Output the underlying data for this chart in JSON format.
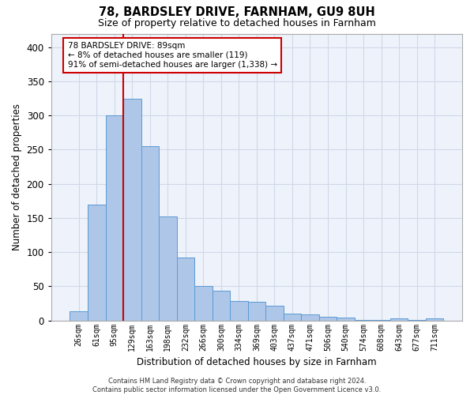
{
  "title1": "78, BARDSLEY DRIVE, FARNHAM, GU9 8UH",
  "title2": "Size of property relative to detached houses in Farnham",
  "xlabel": "Distribution of detached houses by size in Farnham",
  "ylabel": "Number of detached properties",
  "categories": [
    "26sqm",
    "61sqm",
    "95sqm",
    "129sqm",
    "163sqm",
    "198sqm",
    "232sqm",
    "266sqm",
    "300sqm",
    "334sqm",
    "369sqm",
    "403sqm",
    "437sqm",
    "471sqm",
    "506sqm",
    "540sqm",
    "574sqm",
    "608sqm",
    "643sqm",
    "677sqm",
    "711sqm"
  ],
  "values": [
    13,
    170,
    300,
    325,
    255,
    152,
    92,
    50,
    43,
    28,
    27,
    21,
    10,
    9,
    5,
    4,
    1,
    1,
    3,
    1,
    3
  ],
  "bar_color": "#aec6e8",
  "bar_edge_color": "#5b9bd5",
  "grid_color": "#d0d8e8",
  "background_color": "#eef2fa",
  "red_line_index": 2,
  "annotation_text": "78 BARDSLEY DRIVE: 89sqm\n← 8% of detached houses are smaller (119)\n91% of semi-detached houses are larger (1,338) →",
  "annotation_box_color": "#ffffff",
  "annotation_box_edge": "#cc0000",
  "ylim": [
    0,
    420
  ],
  "yticks": [
    0,
    50,
    100,
    150,
    200,
    250,
    300,
    350,
    400
  ],
  "footnote": "Contains HM Land Registry data © Crown copyright and database right 2024.\nContains public sector information licensed under the Open Government Licence v3.0."
}
